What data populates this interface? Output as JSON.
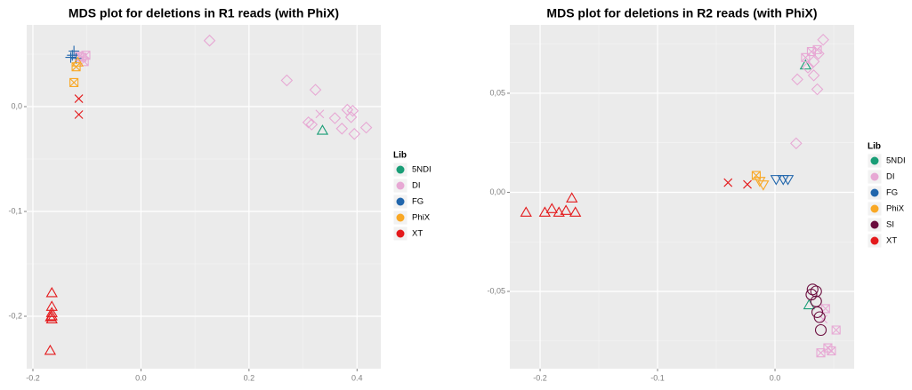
{
  "chart_data": [
    {
      "type": "scatter",
      "title": "MDS plot for deletions in R1 reads (with PhiX)",
      "legend_title": "Lib",
      "xlim": [
        -0.2115,
        0.444
      ],
      "ylim": [
        -0.25,
        0.078
      ],
      "xticks": [
        {
          "value": -0.2,
          "label": "-0.2"
        },
        {
          "value": 0.0,
          "label": "0.0"
        },
        {
          "value": 0.2,
          "label": "0.2"
        },
        {
          "value": 0.4,
          "label": "0.4"
        }
      ],
      "yticks": [
        {
          "value": -0.2,
          "label": "-0,2"
        },
        {
          "value": -0.1,
          "label": "-0,1"
        },
        {
          "value": 0.0,
          "label": "0,0"
        }
      ],
      "grid": true,
      "legend": "right",
      "series": [
        {
          "name": "5NDI",
          "color": "#1a9e77",
          "x": [
            0.336
          ],
          "values": [
            -0.023
          ],
          "shapes": [
            "triangle"
          ]
        },
        {
          "name": "DI",
          "color": "#e7a8d4",
          "x": [
            0.127,
            0.27,
            0.323,
            0.31,
            0.316,
            0.359,
            0.372,
            0.382,
            0.392,
            0.389,
            0.395,
            0.417,
            0.331,
            -0.102,
            -0.109,
            -0.114,
            -0.105
          ],
          "values": [
            0.063,
            0.025,
            0.016,
            -0.015,
            -0.017,
            -0.011,
            -0.021,
            -0.003,
            -0.004,
            -0.01,
            -0.026,
            -0.02,
            -0.007,
            0.049,
            0.047,
            0.048,
            0.043
          ],
          "shapes": [
            "diamond",
            "diamond",
            "diamond",
            "diamond",
            "diamond",
            "diamond",
            "diamond",
            "diamond",
            "diamond",
            "diamond",
            "diamond",
            "diamond",
            "cross",
            "square-x",
            "square-x",
            "square-x",
            "square-x"
          ]
        },
        {
          "name": "FG",
          "color": "#2166ac",
          "x": [
            -0.124,
            -0.127,
            -0.12,
            -0.13
          ],
          "values": [
            0.053,
            0.049,
            0.046,
            0.047
          ],
          "shapes": [
            "plus",
            "plus",
            "plus",
            "plus"
          ]
        },
        {
          "name": "PhiX",
          "color": "#f9a825",
          "x": [
            -0.12,
            -0.124,
            -0.117
          ],
          "values": [
            0.038,
            0.023,
            0.042
          ],
          "shapes": [
            "square-x",
            "square-x",
            "triangle"
          ]
        },
        {
          "name": "XT",
          "color": "#e41a1c",
          "x": [
            -0.115,
            -0.115,
            -0.165,
            -0.165,
            -0.165,
            -0.165,
            -0.165,
            -0.167,
            -0.168
          ],
          "values": [
            0.0076,
            -0.0076,
            -0.178,
            -0.191,
            -0.197,
            -0.2,
            -0.203,
            -0.201,
            -0.233
          ],
          "shapes": [
            "cross",
            "cross",
            "triangle",
            "triangle",
            "triangle",
            "triangle",
            "triangle",
            "triangle",
            "triangle"
          ]
        }
      ]
    },
    {
      "type": "scatter",
      "title": "MDS plot for deletions in R2 reads (with PhiX)",
      "legend_title": "Lib",
      "xlim": [
        -0.2258,
        0.0674
      ],
      "ylim": [
        -0.089,
        0.0845
      ],
      "xticks": [
        {
          "value": -0.2,
          "label": "-0.2"
        },
        {
          "value": -0.1,
          "label": "-0.1"
        },
        {
          "value": 0.0,
          "label": "0.0"
        }
      ],
      "yticks": [
        {
          "value": -0.05,
          "label": "-0,05"
        },
        {
          "value": 0.0,
          "label": "0,00"
        },
        {
          "value": 0.05,
          "label": "0,05"
        }
      ],
      "grid": true,
      "legend": "right",
      "series": [
        {
          "name": "5NDI",
          "color": "#1a9e77",
          "x": [
            0.029,
            0.026
          ],
          "values": [
            -0.057,
            0.064
          ],
          "shapes": [
            "triangle",
            "triangle"
          ]
        },
        {
          "name": "DI",
          "color": "#e7a8d4",
          "x": [
            0.041,
            0.031,
            0.036,
            0.026,
            0.033,
            0.037,
            0.028,
            0.033,
            0.019,
            0.036,
            0.018,
            0.052,
            0.045,
            0.039,
            0.048,
            0.041,
            0.043
          ],
          "values": [
            0.077,
            0.071,
            0.072,
            0.068,
            0.066,
            0.07,
            0.063,
            0.059,
            0.057,
            0.052,
            0.0247,
            -0.0695,
            -0.0785,
            -0.081,
            -0.08,
            -0.064,
            -0.0587
          ],
          "shapes": [
            "diamond",
            "square-x",
            "square-x",
            "square-x",
            "diamond",
            "diamond",
            "diamond",
            "diamond",
            "diamond",
            "diamond",
            "diamond",
            "square-x",
            "square-x",
            "square-x",
            "square-x",
            "cross",
            "square-x"
          ]
        },
        {
          "name": "FG",
          "color": "#2166ac",
          "x": [
            0.001,
            0.007,
            0.011
          ],
          "values": [
            0.0067,
            0.0067,
            0.0067
          ],
          "shapes": [
            "triangle-down",
            "triangle-down",
            "triangle-down"
          ]
        },
        {
          "name": "PhiX",
          "color": "#f9a825",
          "x": [
            -0.016,
            -0.01,
            -0.013
          ],
          "values": [
            0.0085,
            0.004,
            0.0058
          ],
          "shapes": [
            "square-x",
            "triangle-down",
            "triangle-down"
          ]
        },
        {
          "name": "SI",
          "color": "#6b0d3e",
          "x": [
            0.032,
            0.035,
            0.031,
            0.035,
            0.036,
            0.038,
            0.039
          ],
          "values": [
            -0.049,
            -0.05,
            -0.0516,
            -0.055,
            -0.0605,
            -0.063,
            -0.0695
          ],
          "shapes": [
            "circle",
            "circle",
            "circle",
            "circle",
            "circle",
            "circle",
            "circle"
          ]
        },
        {
          "name": "XT",
          "color": "#e41a1c",
          "x": [
            -0.212,
            -0.196,
            -0.19,
            -0.184,
            -0.178,
            -0.173,
            -0.17,
            -0.04,
            -0.0235
          ],
          "values": [
            -0.0103,
            -0.0103,
            -0.0085,
            -0.0103,
            -0.0094,
            -0.0031,
            -0.0103,
            0.0049,
            0.004
          ],
          "shapes": [
            "triangle",
            "triangle",
            "triangle",
            "triangle",
            "triangle",
            "triangle",
            "triangle",
            "cross",
            "cross"
          ]
        }
      ]
    }
  ]
}
